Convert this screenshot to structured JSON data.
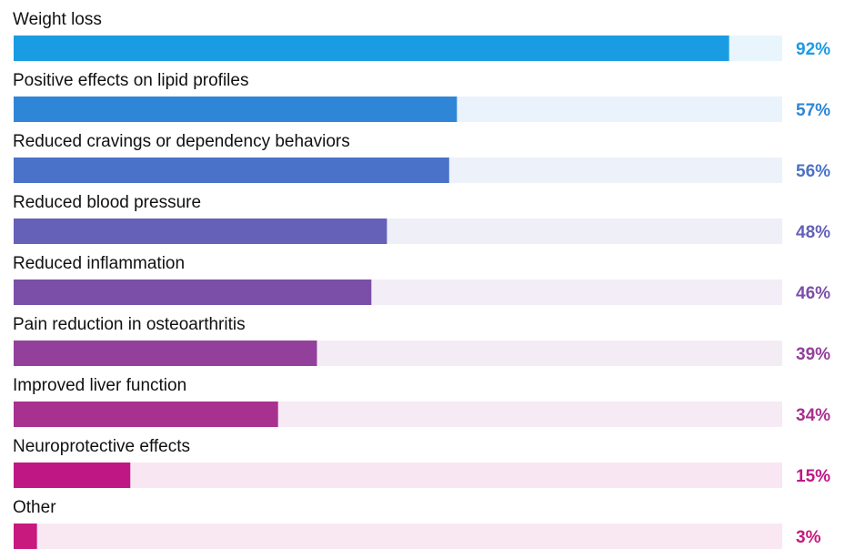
{
  "chart_data": {
    "type": "bar",
    "orientation": "horizontal",
    "categories": [
      "Weight loss",
      "Positive effects on lipid profiles",
      "Reduced cravings or dependency behaviors",
      "Reduced blood pressure",
      "Reduced inflammation",
      "Pain reduction in osteoarthritis",
      "Improved liver function",
      "Neuroprotective effects",
      "Other"
    ],
    "values": [
      92,
      57,
      56,
      48,
      46,
      39,
      34,
      15,
      3
    ],
    "value_labels": [
      "92%",
      "57%",
      "56%",
      "48%",
      "46%",
      "39%",
      "34%",
      "15%",
      "3%"
    ],
    "colors": [
      "#1a9ce3",
      "#2f86d6",
      "#4a72c8",
      "#6560b8",
      "#7b4fa8",
      "#93409c",
      "#a8308f",
      "#bf1885",
      "#c8197f"
    ],
    "xlim": [
      0,
      100
    ]
  }
}
